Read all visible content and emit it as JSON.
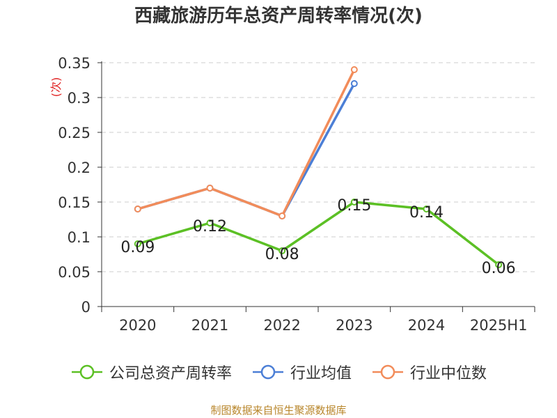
{
  "chart_data": {
    "type": "line",
    "title": "西藏旅游历年总资产周转率情况(次)",
    "ylabel": "(次)",
    "xlabel": "",
    "categories": [
      "2020",
      "2021",
      "2022",
      "2023",
      "2024",
      "2025H1"
    ],
    "ylim": [
      0,
      0.35
    ],
    "yticks": [
      "0",
      "0.05",
      "0.1",
      "0.15",
      "0.2",
      "0.25",
      "0.3",
      "0.35"
    ],
    "grid": true,
    "legend_position": "bottom",
    "series": [
      {
        "name": "公司总资产周转率",
        "color": "#5cc025",
        "values": [
          0.09,
          0.12,
          0.08,
          0.15,
          0.14,
          0.06
        ],
        "labels": [
          "0.09",
          "0.12",
          "0.08",
          "0.15",
          "0.14",
          "0.06"
        ]
      },
      {
        "name": "行业均值",
        "color": "#4c7fd6",
        "values": [
          0.14,
          0.17,
          0.13,
          0.32,
          null,
          null
        ]
      },
      {
        "name": "行业中位数",
        "color": "#f28c5a",
        "values": [
          0.14,
          0.17,
          0.13,
          0.34,
          null,
          null
        ]
      }
    ],
    "source": "制图数据来自恒生聚源数据库"
  }
}
